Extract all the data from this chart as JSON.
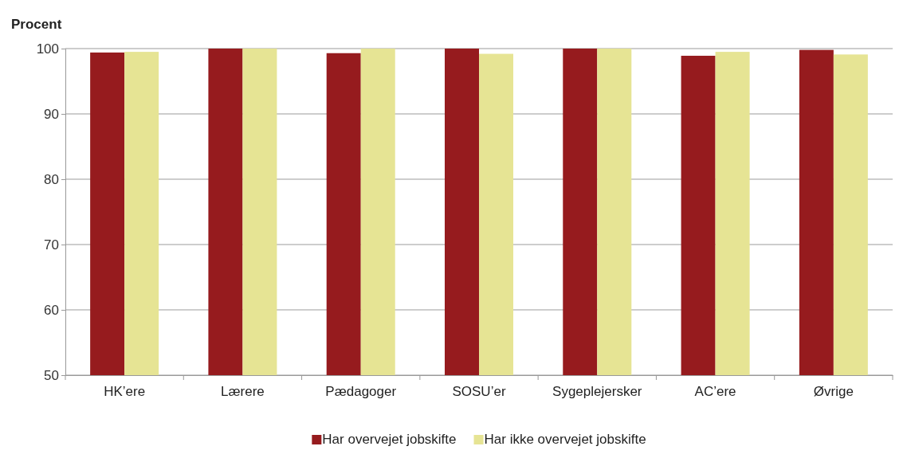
{
  "chart_data": {
    "type": "bar",
    "ylabel": "Procent",
    "categories": [
      "HK’ere",
      "Lærere",
      "Pædagoger",
      "SOSU’er",
      "Sygeplejersker",
      "AC’ere",
      "Øvrige"
    ],
    "series": [
      {
        "name": "Har overvejet jobskifte",
        "color": "#961b1e",
        "values": [
          99.4,
          100,
          99.3,
          100,
          100,
          98.9,
          99.8
        ]
      },
      {
        "name": "Har ikke overvejet jobskifte",
        "color": "#e6e494",
        "values": [
          99.5,
          100,
          100,
          99.2,
          100,
          99.5,
          99.1
        ]
      }
    ],
    "ylim": [
      50,
      100
    ],
    "yticks": [
      50,
      60,
      70,
      80,
      90,
      100
    ],
    "grid": "y",
    "legend": "bottom"
  }
}
